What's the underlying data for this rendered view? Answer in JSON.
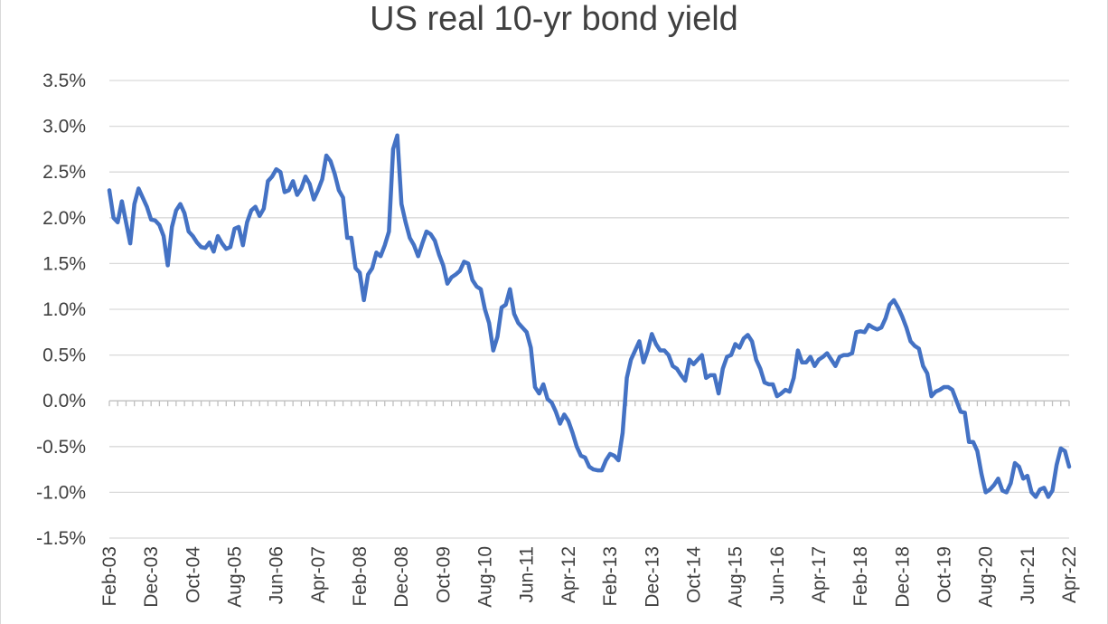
{
  "chart_data": {
    "type": "line",
    "title": "US real 10-yr bond yield",
    "xlabel": "",
    "ylabel": "",
    "ylim": [
      -1.5,
      3.5
    ],
    "ytick_step": 0.5,
    "y_format": "percent_1dp",
    "grid": "horizontal",
    "legend": "none",
    "series_color": "#4472c4",
    "x_start": "Feb-03",
    "x_end": "Apr-22",
    "tick_labels": [
      "Feb-03",
      "Dec-03",
      "Oct-04",
      "Aug-05",
      "Jun-06",
      "Apr-07",
      "Feb-08",
      "Dec-08",
      "Oct-09",
      "Aug-10",
      "Jun-11",
      "Apr-12",
      "Feb-13",
      "Dec-13",
      "Oct-14",
      "Aug-15",
      "Jun-16",
      "Apr-17",
      "Feb-18",
      "Dec-18",
      "Oct-19",
      "Aug-20",
      "Jun-21",
      "Apr-22"
    ],
    "series": [
      {
        "points": [
          [
            "Feb-03",
            2.3
          ],
          [
            "Mar-03",
            2.0
          ],
          [
            "Apr-03",
            1.95
          ],
          [
            "May-03",
            2.18
          ],
          [
            "Jun-03",
            1.95
          ],
          [
            "Jul-03",
            1.72
          ],
          [
            "Aug-03",
            2.15
          ],
          [
            "Sep-03",
            2.32
          ],
          [
            "Oct-03",
            2.22
          ],
          [
            "Nov-03",
            2.12
          ],
          [
            "Dec-03",
            1.98
          ],
          [
            "Jan-04",
            1.97
          ],
          [
            "Feb-04",
            1.92
          ],
          [
            "Mar-04",
            1.8
          ],
          [
            "Apr-04",
            1.48
          ],
          [
            "May-04",
            1.9
          ],
          [
            "Jun-04",
            2.08
          ],
          [
            "Jul-04",
            2.15
          ],
          [
            "Aug-04",
            2.05
          ],
          [
            "Sep-04",
            1.85
          ],
          [
            "Oct-04",
            1.8
          ],
          [
            "Nov-04",
            1.73
          ],
          [
            "Dec-04",
            1.68
          ],
          [
            "Jan-05",
            1.67
          ],
          [
            "Feb-05",
            1.73
          ],
          [
            "Mar-05",
            1.63
          ],
          [
            "Apr-05",
            1.8
          ],
          [
            "May-05",
            1.72
          ],
          [
            "Jun-05",
            1.66
          ],
          [
            "Jul-05",
            1.68
          ],
          [
            "Aug-05",
            1.88
          ],
          [
            "Sep-05",
            1.9
          ],
          [
            "Oct-05",
            1.7
          ],
          [
            "Nov-05",
            1.95
          ],
          [
            "Dec-05",
            2.08
          ],
          [
            "Jan-06",
            2.12
          ],
          [
            "Feb-06",
            2.02
          ],
          [
            "Mar-06",
            2.1
          ],
          [
            "Apr-06",
            2.4
          ],
          [
            "May-06",
            2.45
          ],
          [
            "Jun-06",
            2.53
          ],
          [
            "Jul-06",
            2.5
          ],
          [
            "Aug-06",
            2.28
          ],
          [
            "Sep-06",
            2.3
          ],
          [
            "Oct-06",
            2.4
          ],
          [
            "Nov-06",
            2.25
          ],
          [
            "Dec-06",
            2.32
          ],
          [
            "Jan-07",
            2.45
          ],
          [
            "Feb-07",
            2.37
          ],
          [
            "Mar-07",
            2.2
          ],
          [
            "Apr-07",
            2.3
          ],
          [
            "May-07",
            2.42
          ],
          [
            "Jun-07",
            2.68
          ],
          [
            "Jul-07",
            2.62
          ],
          [
            "Aug-07",
            2.48
          ],
          [
            "Sep-07",
            2.3
          ],
          [
            "Oct-07",
            2.22
          ],
          [
            "Nov-07",
            1.78
          ],
          [
            "Dec-07",
            1.78
          ],
          [
            "Jan-08",
            1.45
          ],
          [
            "Feb-08",
            1.4
          ],
          [
            "Mar-08",
            1.1
          ],
          [
            "Apr-08",
            1.38
          ],
          [
            "May-08",
            1.45
          ],
          [
            "Jun-08",
            1.62
          ],
          [
            "Jul-08",
            1.58
          ],
          [
            "Aug-08",
            1.7
          ],
          [
            "Sep-08",
            1.85
          ],
          [
            "Oct-08",
            2.75
          ],
          [
            "Nov-08",
            2.9
          ],
          [
            "Dec-08",
            2.15
          ],
          [
            "Jan-09",
            1.95
          ],
          [
            "Feb-09",
            1.78
          ],
          [
            "Mar-09",
            1.7
          ],
          [
            "Apr-09",
            1.58
          ],
          [
            "May-09",
            1.72
          ],
          [
            "Jun-09",
            1.85
          ],
          [
            "Jul-09",
            1.82
          ],
          [
            "Aug-09",
            1.75
          ],
          [
            "Sep-09",
            1.6
          ],
          [
            "Oct-09",
            1.48
          ],
          [
            "Nov-09",
            1.28
          ],
          [
            "Dec-09",
            1.35
          ],
          [
            "Jan-10",
            1.38
          ],
          [
            "Feb-10",
            1.42
          ],
          [
            "Mar-10",
            1.52
          ],
          [
            "Apr-10",
            1.5
          ],
          [
            "May-10",
            1.32
          ],
          [
            "Jun-10",
            1.25
          ],
          [
            "Jul-10",
            1.22
          ],
          [
            "Aug-10",
            1.0
          ],
          [
            "Sep-10",
            0.85
          ],
          [
            "Oct-10",
            0.55
          ],
          [
            "Nov-10",
            0.7
          ],
          [
            "Dec-10",
            1.02
          ],
          [
            "Jan-11",
            1.05
          ],
          [
            "Feb-11",
            1.22
          ],
          [
            "Mar-11",
            0.95
          ],
          [
            "Apr-11",
            0.85
          ],
          [
            "May-11",
            0.8
          ],
          [
            "Jun-11",
            0.75
          ],
          [
            "Jul-11",
            0.58
          ],
          [
            "Aug-11",
            0.15
          ],
          [
            "Sep-11",
            0.08
          ],
          [
            "Oct-11",
            0.18
          ],
          [
            "Nov-11",
            0.02
          ],
          [
            "Dec-11",
            -0.02
          ],
          [
            "Jan-12",
            -0.12
          ],
          [
            "Feb-12",
            -0.25
          ],
          [
            "Mar-12",
            -0.15
          ],
          [
            "Apr-12",
            -0.22
          ],
          [
            "May-12",
            -0.35
          ],
          [
            "Jun-12",
            -0.5
          ],
          [
            "Jul-12",
            -0.6
          ],
          [
            "Aug-12",
            -0.62
          ],
          [
            "Sep-12",
            -0.72
          ],
          [
            "Oct-12",
            -0.75
          ],
          [
            "Nov-12",
            -0.76
          ],
          [
            "Dec-12",
            -0.76
          ],
          [
            "Jan-13",
            -0.65
          ],
          [
            "Feb-13",
            -0.58
          ],
          [
            "Mar-13",
            -0.6
          ],
          [
            "Apr-13",
            -0.65
          ],
          [
            "May-13",
            -0.35
          ],
          [
            "Jun-13",
            0.25
          ],
          [
            "Jul-13",
            0.45
          ],
          [
            "Aug-13",
            0.55
          ],
          [
            "Sep-13",
            0.65
          ],
          [
            "Oct-13",
            0.42
          ],
          [
            "Nov-13",
            0.55
          ],
          [
            "Dec-13",
            0.73
          ],
          [
            "Jan-14",
            0.62
          ],
          [
            "Feb-14",
            0.55
          ],
          [
            "Mar-14",
            0.55
          ],
          [
            "Apr-14",
            0.5
          ],
          [
            "May-14",
            0.38
          ],
          [
            "Jun-14",
            0.35
          ],
          [
            "Jul-14",
            0.28
          ],
          [
            "Aug-14",
            0.22
          ],
          [
            "Sep-14",
            0.45
          ],
          [
            "Oct-14",
            0.4
          ],
          [
            "Nov-14",
            0.45
          ],
          [
            "Dec-14",
            0.5
          ],
          [
            "Jan-15",
            0.25
          ],
          [
            "Feb-15",
            0.28
          ],
          [
            "Mar-15",
            0.28
          ],
          [
            "Apr-15",
            0.08
          ],
          [
            "May-15",
            0.35
          ],
          [
            "Jun-15",
            0.48
          ],
          [
            "Jul-15",
            0.5
          ],
          [
            "Aug-15",
            0.62
          ],
          [
            "Sep-15",
            0.58
          ],
          [
            "Oct-15",
            0.68
          ],
          [
            "Nov-15",
            0.72
          ],
          [
            "Dec-15",
            0.65
          ],
          [
            "Jan-16",
            0.45
          ],
          [
            "Feb-16",
            0.35
          ],
          [
            "Mar-16",
            0.2
          ],
          [
            "Apr-16",
            0.18
          ],
          [
            "May-16",
            0.18
          ],
          [
            "Jun-16",
            0.05
          ],
          [
            "Jul-16",
            0.08
          ],
          [
            "Aug-16",
            0.12
          ],
          [
            "Sep-16",
            0.1
          ],
          [
            "Oct-16",
            0.25
          ],
          [
            "Nov-16",
            0.55
          ],
          [
            "Dec-16",
            0.42
          ],
          [
            "Jan-17",
            0.42
          ],
          [
            "Feb-17",
            0.48
          ],
          [
            "Mar-17",
            0.38
          ],
          [
            "Apr-17",
            0.45
          ],
          [
            "May-17",
            0.48
          ],
          [
            "Jun-17",
            0.52
          ],
          [
            "Jul-17",
            0.45
          ],
          [
            "Aug-17",
            0.38
          ],
          [
            "Sep-17",
            0.48
          ],
          [
            "Oct-17",
            0.5
          ],
          [
            "Nov-17",
            0.5
          ],
          [
            "Dec-17",
            0.52
          ],
          [
            "Jan-18",
            0.75
          ],
          [
            "Feb-18",
            0.76
          ],
          [
            "Mar-18",
            0.75
          ],
          [
            "Apr-18",
            0.83
          ],
          [
            "May-18",
            0.8
          ],
          [
            "Jun-18",
            0.78
          ],
          [
            "Jul-18",
            0.8
          ],
          [
            "Aug-18",
            0.9
          ],
          [
            "Sep-18",
            1.05
          ],
          [
            "Oct-18",
            1.1
          ],
          [
            "Nov-18",
            1.02
          ],
          [
            "Dec-18",
            0.92
          ],
          [
            "Jan-19",
            0.8
          ],
          [
            "Feb-19",
            0.65
          ],
          [
            "Mar-19",
            0.6
          ],
          [
            "Apr-19",
            0.57
          ],
          [
            "May-19",
            0.38
          ],
          [
            "Jun-19",
            0.3
          ],
          [
            "Jul-19",
            0.05
          ],
          [
            "Aug-19",
            0.1
          ],
          [
            "Sep-19",
            0.12
          ],
          [
            "Oct-19",
            0.15
          ],
          [
            "Nov-19",
            0.15
          ],
          [
            "Dec-19",
            0.12
          ],
          [
            "Jan-20",
            0.0
          ],
          [
            "Feb-20",
            -0.12
          ],
          [
            "Mar-20",
            -0.13
          ],
          [
            "Apr-20",
            -0.45
          ],
          [
            "May-20",
            -0.45
          ],
          [
            "Jun-20",
            -0.55
          ],
          [
            "Jul-20",
            -0.8
          ],
          [
            "Aug-20",
            -1.0
          ],
          [
            "Sep-20",
            -0.97
          ],
          [
            "Oct-20",
            -0.92
          ],
          [
            "Nov-20",
            -0.85
          ],
          [
            "Dec-20",
            -0.98
          ],
          [
            "Jan-21",
            -1.0
          ],
          [
            "Feb-21",
            -0.9
          ],
          [
            "Mar-21",
            -0.68
          ],
          [
            "Apr-21",
            -0.72
          ],
          [
            "May-21",
            -0.85
          ],
          [
            "Jun-21",
            -0.82
          ],
          [
            "Jul-21",
            -1.0
          ],
          [
            "Aug-21",
            -1.05
          ],
          [
            "Sep-21",
            -0.97
          ],
          [
            "Oct-21",
            -0.95
          ],
          [
            "Nov-21",
            -1.05
          ],
          [
            "Dec-21",
            -0.98
          ],
          [
            "Jan-22",
            -0.7
          ],
          [
            "Feb-22",
            -0.52
          ],
          [
            "Mar-22",
            -0.55
          ],
          [
            "Apr-22",
            -0.72
          ]
        ]
      }
    ]
  }
}
